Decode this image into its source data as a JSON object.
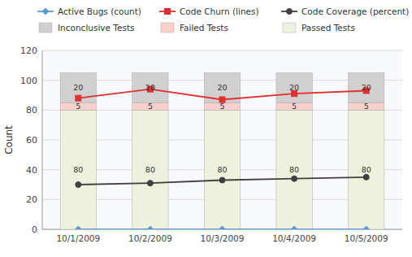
{
  "chart_data": {
    "type": "bar",
    "stacked": true,
    "data_labels": true,
    "grid": true,
    "legend": "top",
    "categories": [
      "10/1/2009",
      "10/2/2009",
      "10/3/2009",
      "10/4/2009",
      "10/5/2009"
    ],
    "ylabel": "Count",
    "ylim": [
      0,
      120
    ],
    "yticks": [
      0,
      20,
      40,
      60,
      80,
      100,
      120
    ],
    "series": [
      {
        "name": "Passed Tests",
        "type": "bar",
        "color": "#eef2dc",
        "values": [
          80,
          80,
          80,
          80,
          80
        ]
      },
      {
        "name": "Failed Tests",
        "type": "bar",
        "color": "#f9d0cc",
        "values": [
          5,
          5,
          5,
          5,
          5
        ]
      },
      {
        "name": "Inconclusive Tests",
        "type": "bar",
        "color": "#d0d0d0",
        "values": [
          20,
          20,
          20,
          20,
          20
        ]
      },
      {
        "name": "Active Bugs (count)",
        "type": "line",
        "color": "#5b9bd5",
        "marker": "diamond",
        "values": [
          0,
          0,
          0,
          0,
          0
        ]
      },
      {
        "name": "Code Churn (lines)",
        "type": "line",
        "color": "#e03030",
        "marker": "square",
        "values": [
          88,
          94,
          87,
          91,
          93
        ]
      },
      {
        "name": "Code Coverage (percent)",
        "type": "line",
        "color": "#404040",
        "marker": "circle",
        "values": [
          30,
          31,
          33,
          34,
          35
        ]
      }
    ]
  }
}
